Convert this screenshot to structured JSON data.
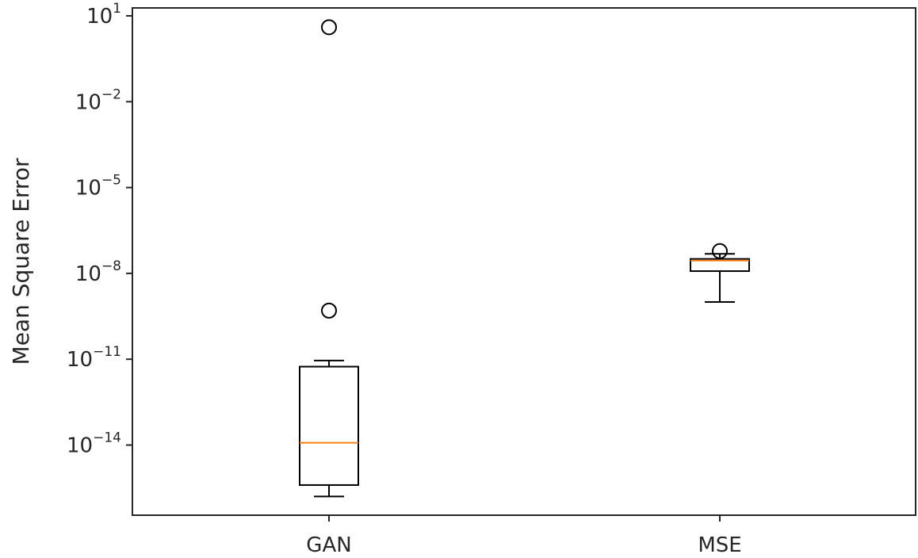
{
  "chart_data": {
    "type": "box",
    "title": "",
    "xlabel": "",
    "ylabel": "Mean Square Error",
    "yscale": "log",
    "ylim": [
      1e-16,
      100.0
    ],
    "yticks": [
      {
        "value": 10.0,
        "base": "10",
        "exp": "1"
      },
      {
        "value": 0.01,
        "base": "10",
        "exp": "−2"
      },
      {
        "value": 1e-05,
        "base": "10",
        "exp": "−5"
      },
      {
        "value": 1e-08,
        "base": "10",
        "exp": "−8"
      },
      {
        "value": 1e-11,
        "base": "10",
        "exp": "−11"
      },
      {
        "value": 1e-14,
        "base": "10",
        "exp": "−14"
      }
    ],
    "categories": [
      "GAN",
      "MSE"
    ],
    "grid": false,
    "colors": {
      "box": "#000000",
      "median": "#ff7f0e",
      "axis": "#262626"
    },
    "series": [
      {
        "whisker_low": 1.6e-16,
        "q1": 4e-16,
        "median": 1.2e-14,
        "q3": 5.5e-12,
        "whisker_high": 9e-12,
        "outliers": [
          4.0,
          5e-10
        ]
      },
      {
        "whisker_low": 1e-09,
        "q1": 1.2e-08,
        "median": 2.8e-08,
        "q3": 3.2e-08,
        "whisker_high": 4.8e-08,
        "outliers": [
          6e-08
        ]
      }
    ]
  }
}
